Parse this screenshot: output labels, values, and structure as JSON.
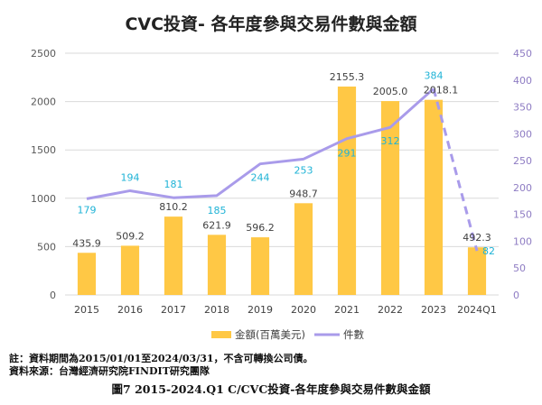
{
  "chart_data": {
    "type": "bar",
    "title": "CVC投資- 各年度參與交易件數與金額",
    "categories": [
      "2015",
      "2016",
      "2017",
      "2018",
      "2019",
      "2020",
      "2021",
      "2022",
      "2023",
      "2024Q1"
    ],
    "series": [
      {
        "name": "金額(百萬美元)",
        "type": "bar",
        "axis": "left",
        "color": "#FFC845",
        "values": [
          435.9,
          509.2,
          810.2,
          621.9,
          596.2,
          948.7,
          2155.3,
          2005.0,
          2018.1,
          492.3
        ],
        "labels": [
          "435.9",
          "509.2",
          "810.2",
          "621.9",
          "596.2",
          "948.7",
          "2155.3",
          "2005.0",
          "2018.1",
          "492.3"
        ]
      },
      {
        "name": "件數",
        "type": "line",
        "axis": "right",
        "color": "#A99BEA",
        "label_color": "#1FB3D6",
        "values": [
          179,
          194,
          181,
          185,
          244,
          253,
          291,
          312,
          384,
          82
        ],
        "labels": [
          "179",
          "194",
          "181",
          "185",
          "244",
          "253",
          "291",
          "312",
          "384",
          "82"
        ],
        "dashed_from_index": 8
      }
    ],
    "y_left": {
      "min": 0,
      "max": 2500,
      "ticks": [
        0,
        500,
        1000,
        1500,
        2000,
        2500
      ]
    },
    "y_right": {
      "min": 0,
      "max": 450,
      "ticks": [
        0,
        50,
        100,
        150,
        200,
        250,
        300,
        350,
        400,
        450
      ],
      "color": "#8E7CC3"
    },
    "grid": true,
    "legend": "bottom"
  },
  "notes": {
    "note1": "註：資料期間為2015/01/01至2024/03/31，不含可轉換公司債。",
    "note2": "資料來源：台灣經濟研究院FINDIT研究團隊"
  },
  "caption": "圖7  2015-2024.Q1 C/CVC投資-各年度參與交易件數與金額"
}
